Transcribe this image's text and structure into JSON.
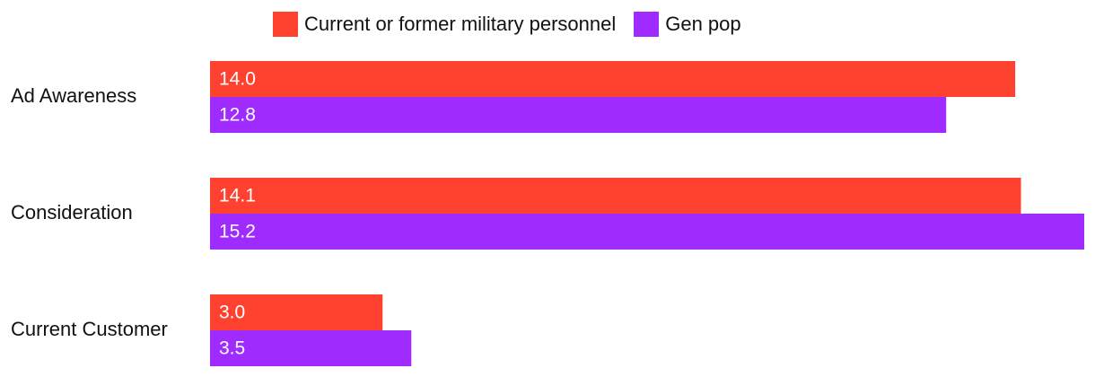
{
  "colors": {
    "military": "#FF4230",
    "genpop": "#A02BFF"
  },
  "legend": [
    {
      "label": "Current or former military personnel",
      "color": "#FF4230"
    },
    {
      "label": "Gen pop",
      "color": "#A02BFF"
    }
  ],
  "chart_data": {
    "type": "bar",
    "orientation": "horizontal",
    "categories": [
      "Ad Awareness",
      "Consideration",
      "Current Customer"
    ],
    "series": [
      {
        "name": "Current or former military personnel",
        "values": [
          14.0,
          14.1,
          3.0
        ]
      },
      {
        "name": "Gen pop",
        "values": [
          12.8,
          15.2,
          3.5
        ]
      }
    ],
    "xlim": [
      0,
      15.2
    ],
    "grid": false,
    "legend_position": "top-center",
    "data_labels": true
  }
}
